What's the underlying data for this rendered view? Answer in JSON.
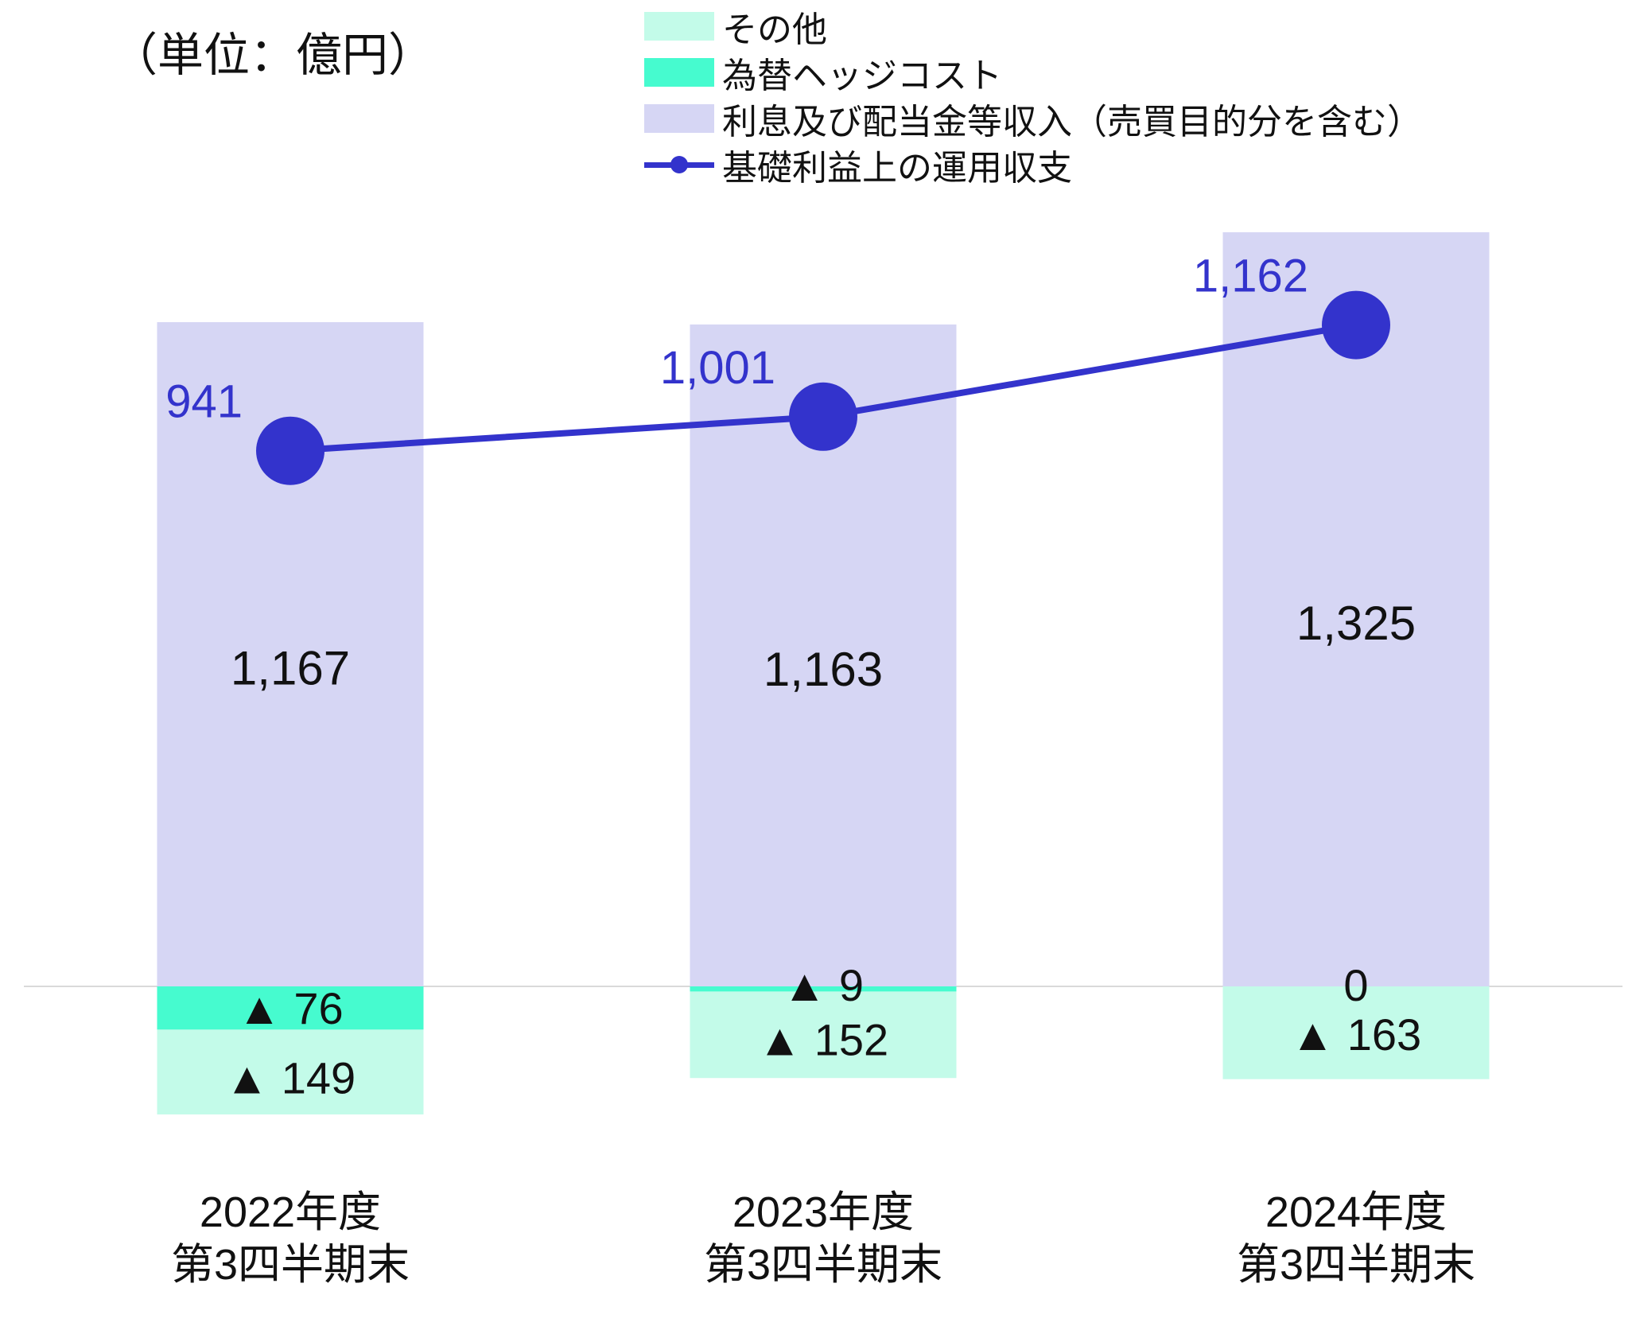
{
  "unit_label": "（単位：億円）",
  "legend": [
    {
      "label": "その他",
      "color": "#c3fbe9",
      "kind": "box"
    },
    {
      "label": "為替ヘッジコスト",
      "color": "#46fbcf",
      "kind": "box"
    },
    {
      "label": "利息及び配当金等収入（売買目的分を含む）",
      "color": "#d6d6f4",
      "kind": "box"
    },
    {
      "label": "基礎利益上の運用収支",
      "color": "#3333cc",
      "kind": "line"
    }
  ],
  "chart_data": {
    "type": "bar",
    "stacked": true,
    "categories": [
      [
        "2022年度",
        "第3四半期末"
      ],
      [
        "2023年度",
        "第3四半期末"
      ],
      [
        "2024年度",
        "第3四半期末"
      ]
    ],
    "series": [
      {
        "name": "利息及び配当金等収入（売買目的分を含む）",
        "kind": "bar",
        "color": "#d6d6f4",
        "values": [
          1167,
          1163,
          1325
        ],
        "labels": [
          "1,167",
          "1,163",
          "1,325"
        ]
      },
      {
        "name": "為替ヘッジコスト",
        "kind": "bar",
        "color": "#46fbcf",
        "values": [
          -76,
          -9,
          0
        ],
        "labels": [
          "▲ 76",
          "▲ 9",
          "0"
        ]
      },
      {
        "name": "その他",
        "kind": "bar",
        "color": "#c3fbe9",
        "values": [
          -149,
          -152,
          -163
        ],
        "labels": [
          "▲ 149",
          "▲ 152",
          "▲ 163"
        ]
      },
      {
        "name": "基礎利益上の運用収支",
        "kind": "line",
        "color": "#3333cc",
        "values": [
          941,
          1001,
          1162
        ],
        "labels": [
          "941",
          "1,001",
          "1,162"
        ]
      }
    ],
    "grid": false,
    "legend_position": "top"
  }
}
